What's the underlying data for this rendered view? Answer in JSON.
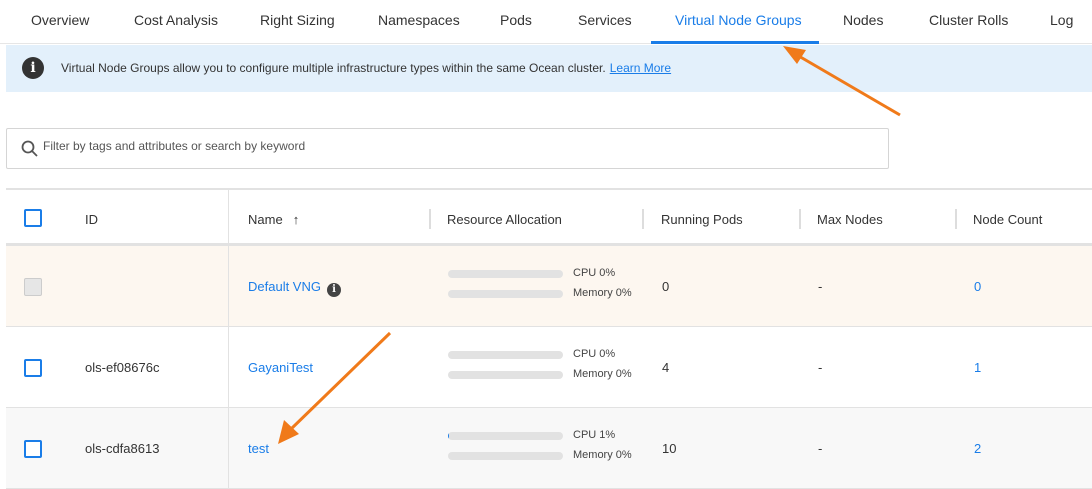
{
  "tabs": [
    {
      "label": "Overview",
      "active": false
    },
    {
      "label": "Cost Analysis",
      "active": false
    },
    {
      "label": "Right Sizing",
      "active": false
    },
    {
      "label": "Namespaces",
      "active": false
    },
    {
      "label": "Pods",
      "active": false
    },
    {
      "label": "Services",
      "active": false
    },
    {
      "label": "Virtual Node Groups",
      "active": true
    },
    {
      "label": "Nodes",
      "active": false
    },
    {
      "label": "Cluster Rolls",
      "active": false
    },
    {
      "label": "Log",
      "active": false
    }
  ],
  "banner": {
    "text": "Virtual Node Groups allow you to configure multiple infrastructure types within the same Ocean cluster.",
    "link": "Learn More"
  },
  "search": {
    "placeholder": "Filter by tags and attributes or search by keyword",
    "value": ""
  },
  "table": {
    "headers": {
      "id": "ID",
      "name": "Name",
      "resource": "Resource Allocation",
      "running_pods": "Running Pods",
      "max_nodes": "Max Nodes",
      "node_count": "Node Count"
    },
    "sort": {
      "column": "Name",
      "direction": "ascending"
    },
    "rows": [
      {
        "id": "",
        "name": "Default VNG",
        "cpu": "CPU 0%",
        "cpu_pct": 0,
        "memory": "Memory 0%",
        "memory_pct": 0,
        "running_pods": "0",
        "max_nodes": "-",
        "node_count": "0"
      },
      {
        "id": "ols-ef08676c",
        "name": "GayaniTest",
        "cpu": "CPU 0%",
        "cpu_pct": 0,
        "memory": "Memory 0%",
        "memory_pct": 0,
        "running_pods": "4",
        "max_nodes": "-",
        "node_count": "1"
      },
      {
        "id": "ols-cdfa8613",
        "name": "test",
        "cpu": "CPU 1%",
        "cpu_pct": 1,
        "memory": "Memory 0%",
        "memory_pct": 0,
        "running_pods": "10",
        "max_nodes": "-",
        "node_count": "2"
      }
    ]
  },
  "colors": {
    "accent": "#1a7de8",
    "banner_bg": "#e3f0fb",
    "annotation_arrow": "#f07a1a"
  }
}
